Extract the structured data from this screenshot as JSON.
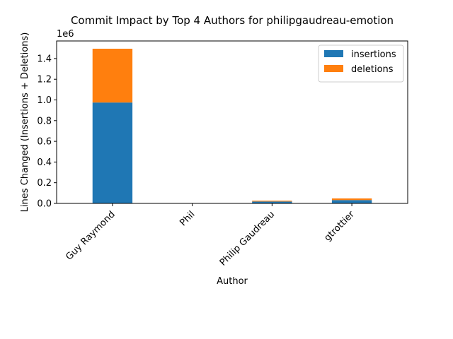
{
  "chart_data": {
    "type": "bar",
    "stacked": true,
    "title": "Commit Impact by Top 4 Authors for philipgaudreau-emotion",
    "xlabel": "Author",
    "ylabel": "Lines Changed (Insertions + Deletions)",
    "y_offset_label": "1e6",
    "categories": [
      "Guy Raymond",
      "Phil",
      "Philip Gaudreau",
      "gtrottier"
    ],
    "series": [
      {
        "name": "insertions",
        "color": "#1f77b4",
        "values": [
          975000,
          0,
          18000,
          32000
        ]
      },
      {
        "name": "deletions",
        "color": "#ff7f0e",
        "values": [
          520000,
          0,
          8000,
          16000
        ]
      }
    ],
    "ylim": [
      0,
      1570000
    ],
    "yticks": [
      {
        "value": 0,
        "label": "0.0"
      },
      {
        "value": 200000,
        "label": "0.2"
      },
      {
        "value": 400000,
        "label": "0.4"
      },
      {
        "value": 600000,
        "label": "0.6"
      },
      {
        "value": 800000,
        "label": "0.8"
      },
      {
        "value": 1000000,
        "label": "1.0"
      },
      {
        "value": 1200000,
        "label": "1.2"
      },
      {
        "value": 1400000,
        "label": "1.4"
      }
    ],
    "legend_position": "top-right",
    "grid": false
  }
}
